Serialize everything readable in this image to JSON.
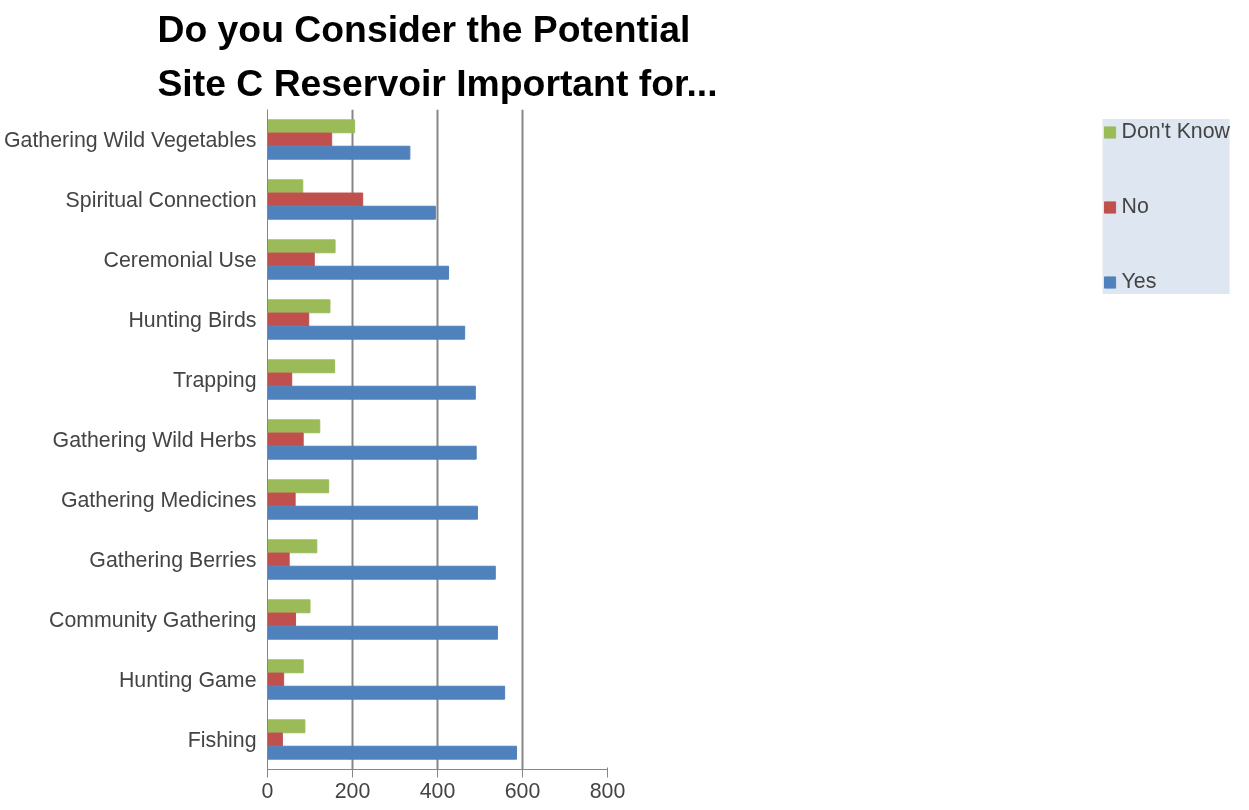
{
  "chart_data": {
    "type": "bar",
    "orientation": "horizontal",
    "title": "Do you Consider the Potential Site C Reservoir Important for...",
    "categories": [
      "Gathering Wild Vegetables",
      "Spiritual Connection",
      "Ceremonial Use",
      "Hunting Birds",
      "Trapping",
      "Gathering Wild Herbs",
      "Gathering Medicines",
      "Gathering Berries",
      "Community Gathering",
      "Hunting Game",
      "Fishing"
    ],
    "series": [
      {
        "name": "Don't Know",
        "color": "#9bbb59",
        "values": [
          205,
          83,
          159,
          147,
          158,
          123,
          144,
          116,
          100,
          84,
          88
        ]
      },
      {
        "name": "No",
        "color": "#c0504d",
        "values": [
          151,
          224,
          110,
          97,
          57,
          84,
          65,
          51,
          66,
          38,
          35
        ]
      },
      {
        "name": "Yes",
        "color": "#4f81bd",
        "values": [
          335,
          395,
          426,
          464,
          489,
          491,
          494,
          536,
          541,
          558,
          586
        ]
      }
    ],
    "xlim": [
      0,
      800
    ],
    "xticks": [
      0,
      200,
      400,
      600,
      800
    ],
    "grid": "x",
    "legend": "right"
  }
}
